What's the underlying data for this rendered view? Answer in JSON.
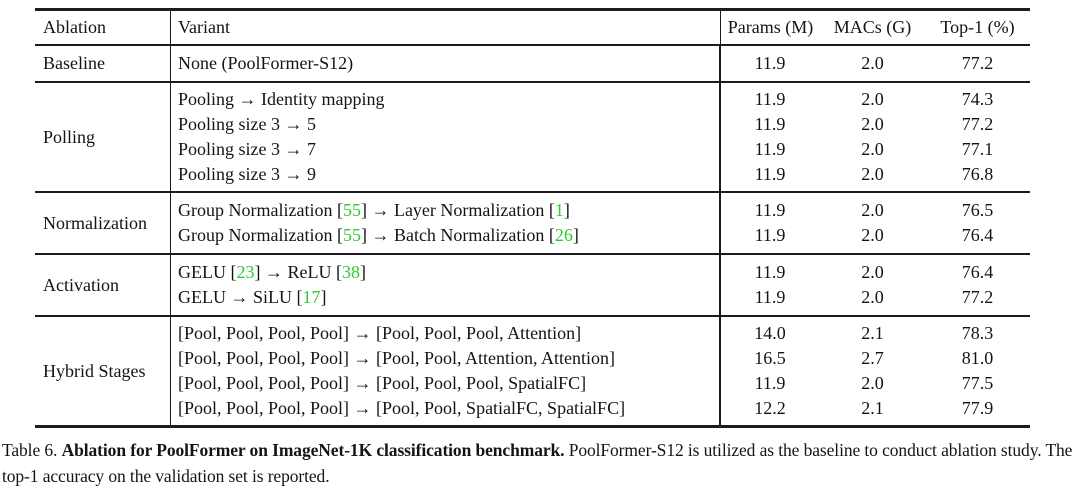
{
  "table": {
    "columns": [
      "Ablation",
      "Variant",
      "Params (M)",
      "MACs (G)",
      "Top-1 (%)"
    ],
    "sections": [
      {
        "ablation": "Baseline",
        "rows": [
          {
            "variant": [
              [
                "None (PoolFormer-S12)",
                false
              ]
            ],
            "params": "11.9",
            "macs": "2.0",
            "top1": "77.2"
          }
        ]
      },
      {
        "ablation": "Polling",
        "rows": [
          {
            "variant": [
              [
                "Pooling → Identity mapping",
                false
              ]
            ],
            "params": "11.9",
            "macs": "2.0",
            "top1": "74.3"
          },
          {
            "variant": [
              [
                "Pooling size 3 → 5",
                false
              ]
            ],
            "params": "11.9",
            "macs": "2.0",
            "top1": "77.2"
          },
          {
            "variant": [
              [
                "Pooling size 3 → 7",
                false
              ]
            ],
            "params": "11.9",
            "macs": "2.0",
            "top1": "77.1"
          },
          {
            "variant": [
              [
                "Pooling size 3 → 9",
                false
              ]
            ],
            "params": "11.9",
            "macs": "2.0",
            "top1": "76.8"
          }
        ]
      },
      {
        "ablation": "Normalization",
        "rows": [
          {
            "variant": [
              [
                "Group Normalization [",
                false
              ],
              [
                "55",
                true
              ],
              [
                "] → Layer Normalization [",
                false
              ],
              [
                "1",
                true
              ],
              [
                "]",
                false
              ]
            ],
            "params": "11.9",
            "macs": "2.0",
            "top1": "76.5"
          },
          {
            "variant": [
              [
                "Group Normalization [",
                false
              ],
              [
                "55",
                true
              ],
              [
                "] → Batch Normalization [",
                false
              ],
              [
                "26",
                true
              ],
              [
                "]",
                false
              ]
            ],
            "params": "11.9",
            "macs": "2.0",
            "top1": "76.4"
          }
        ]
      },
      {
        "ablation": "Activation",
        "rows": [
          {
            "variant": [
              [
                "GELU [",
                false
              ],
              [
                "23",
                true
              ],
              [
                "] → ReLU [",
                false
              ],
              [
                "38",
                true
              ],
              [
                "]",
                false
              ]
            ],
            "params": "11.9",
            "macs": "2.0",
            "top1": "76.4"
          },
          {
            "variant": [
              [
                "GELU → SiLU [",
                false
              ],
              [
                "17",
                true
              ],
              [
                "]",
                false
              ]
            ],
            "params": "11.9",
            "macs": "2.0",
            "top1": "77.2"
          }
        ]
      },
      {
        "ablation": "Hybrid Stages",
        "rows": [
          {
            "variant": [
              [
                "[Pool, Pool, Pool, Pool] → [Pool, Pool, Pool, Attention]",
                false
              ]
            ],
            "params": "14.0",
            "macs": "2.1",
            "top1": "78.3"
          },
          {
            "variant": [
              [
                "[Pool, Pool, Pool, Pool] → [Pool, Pool, Attention, Attention]",
                false
              ]
            ],
            "params": "16.5",
            "macs": "2.7",
            "top1": "81.0"
          },
          {
            "variant": [
              [
                "[Pool, Pool, Pool, Pool] → [Pool, Pool, Pool, SpatialFC]",
                false
              ]
            ],
            "params": "11.9",
            "macs": "2.0",
            "top1": "77.5"
          },
          {
            "variant": [
              [
                "[Pool, Pool, Pool, Pool] → [Pool, Pool, SpatialFC, SpatialFC]",
                false
              ]
            ],
            "params": "12.2",
            "macs": "2.1",
            "top1": "77.9"
          }
        ]
      }
    ]
  },
  "caption": {
    "prefix": "Table 6. ",
    "bold": "Ablation for PoolFormer on ImageNet-1K classification benchmark.",
    "rest": " PoolFormer-S12 is utilized as the baseline to conduct ablation study. The top-1 accuracy on the validation set is reported."
  },
  "colors": {
    "citation_green": "#2ecc2e",
    "rule": "#1c1c1c",
    "text": "#141414",
    "background": "#ffffff"
  }
}
